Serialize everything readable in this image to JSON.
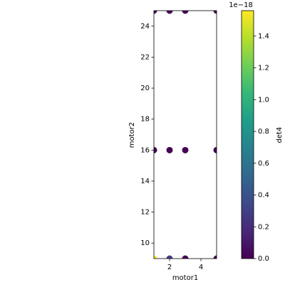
{
  "chart_data": {
    "type": "scatter",
    "x_label": "motor1",
    "y_label": "motor2",
    "x": [
      1,
      2,
      3,
      5,
      1,
      2,
      3,
      5,
      1,
      2,
      3,
      5
    ],
    "y": [
      25,
      25,
      25,
      25,
      16,
      16,
      16,
      16,
      9,
      9,
      9,
      9
    ],
    "c": [
      0,
      0,
      0,
      0,
      0,
      0,
      0,
      0,
      1.56e-18,
      3e-19,
      0,
      0
    ],
    "xlim": [
      1,
      5
    ],
    "xticks": [
      2,
      4
    ],
    "ylim": [
      9,
      25
    ],
    "yticks": [
      10,
      12,
      14,
      16,
      18,
      20,
      22,
      24
    ],
    "colormap": "viridis",
    "colorbar": {
      "label": "det4",
      "offset_text": "1e−18",
      "clim": [
        0,
        1.56e-18
      ],
      "ticks": [
        {
          "value": 0,
          "label": "0.0"
        },
        {
          "value": 2e-19,
          "label": "0.2"
        },
        {
          "value": 4e-19,
          "label": "0.4"
        },
        {
          "value": 6e-19,
          "label": "0.6"
        },
        {
          "value": 8e-19,
          "label": "0.8"
        },
        {
          "value": 1e-18,
          "label": "1.0"
        },
        {
          "value": 1.2e-18,
          "label": "1.2"
        },
        {
          "value": 1.4e-18,
          "label": "1.4"
        }
      ]
    }
  }
}
